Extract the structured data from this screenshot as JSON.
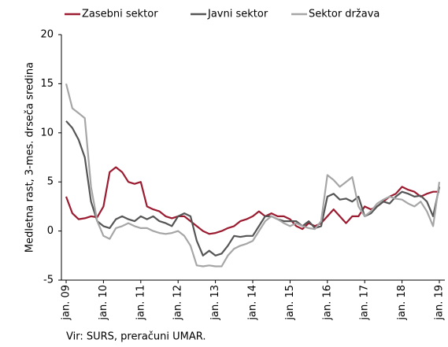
{
  "chart_data": {
    "type": "line",
    "y_label": "Medletna rast, 3-mes. drseča sredina",
    "source": "Vir: SURS, preračuni UMAR.",
    "categories": [
      "jan. 09",
      null,
      null,
      null,
      null,
      null,
      "jan. 10",
      null,
      null,
      null,
      null,
      null,
      "jan. 11",
      null,
      null,
      null,
      null,
      null,
      "jan. 12",
      null,
      null,
      null,
      null,
      null,
      "jan. 13",
      null,
      null,
      null,
      null,
      null,
      "jan. 14",
      null,
      null,
      null,
      null,
      null,
      "jan. 15",
      null,
      null,
      null,
      null,
      null,
      "jan. 16",
      null,
      null,
      null,
      null,
      null,
      "jan. 17",
      null,
      null,
      null,
      null,
      null,
      "jan. 18",
      null,
      null,
      null,
      null,
      null,
      "jan. 19"
    ],
    "series": [
      {
        "name": "Zasebni sektor",
        "color": "#9b1b30",
        "values": [
          3.5,
          1.8,
          1.2,
          1.3,
          1.5,
          1.4,
          2.5,
          6.0,
          6.5,
          6.0,
          5.0,
          4.8,
          5.0,
          2.5,
          2.2,
          2.0,
          1.5,
          1.3,
          1.5,
          1.5,
          1.0,
          0.5,
          0,
          -0.3,
          -0.2,
          0,
          0.3,
          0.5,
          1.0,
          1.2,
          1.5,
          2.0,
          1.5,
          1.8,
          1.5,
          1.5,
          1.2,
          0.5,
          0.2,
          0.8,
          0.5,
          0.8,
          1.5,
          2.2,
          1.5,
          0.8,
          1.5,
          1.5,
          2.5,
          2.2,
          2.5,
          3.0,
          3.5,
          3.8,
          4.5,
          4.2,
          4.0,
          3.5,
          3.8,
          4.0,
          4.0
        ]
      },
      {
        "name": "Javni sektor",
        "color": "#555555",
        "values": [
          11.2,
          10.5,
          9.3,
          7.5,
          3.0,
          1.0,
          0.5,
          0.3,
          1.2,
          1.5,
          1.2,
          1.0,
          1.5,
          1.2,
          1.5,
          1.0,
          0.8,
          0.5,
          1.5,
          1.8,
          1.5,
          -1.0,
          -2.5,
          -2.0,
          -2.5,
          -2.3,
          -1.5,
          -0.5,
          -0.6,
          -0.5,
          -0.5,
          0.5,
          1.5,
          1.5,
          1.2,
          1.0,
          1.0,
          1.0,
          0.5,
          1.0,
          0.3,
          0.5,
          3.5,
          3.8,
          3.2,
          3.3,
          3.0,
          3.5,
          1.5,
          1.8,
          2.5,
          3.0,
          2.8,
          3.5,
          4.0,
          3.8,
          3.5,
          3.6,
          3.0,
          1.5,
          4.5
        ]
      },
      {
        "name": "Sektor država",
        "color": "#a6a6a6",
        "values": [
          15,
          12.5,
          12.0,
          11.5,
          4.5,
          1.0,
          -0.5,
          -0.8,
          0.3,
          0.5,
          0.8,
          0.5,
          0.3,
          0.3,
          0,
          -0.2,
          -0.3,
          -0.2,
          0,
          -0.5,
          -1.5,
          -3.5,
          -3.6,
          -3.5,
          -3.6,
          -3.6,
          -2.5,
          -1.8,
          -1.5,
          -1.3,
          -1.0,
          0,
          1.0,
          1.5,
          1.2,
          0.8,
          0.5,
          0.8,
          0.5,
          0.3,
          0.2,
          1.0,
          5.7,
          5.2,
          4.5,
          5.0,
          5.5,
          2.5,
          1.5,
          2.0,
          2.8,
          3.2,
          3.5,
          3.3,
          3.2,
          2.8,
          2.5,
          3.0,
          2.0,
          0.5,
          5.0
        ]
      }
    ],
    "ylim": [
      -5,
      20
    ],
    "yticks": [
      -5,
      0,
      5,
      10,
      15,
      20
    ]
  }
}
